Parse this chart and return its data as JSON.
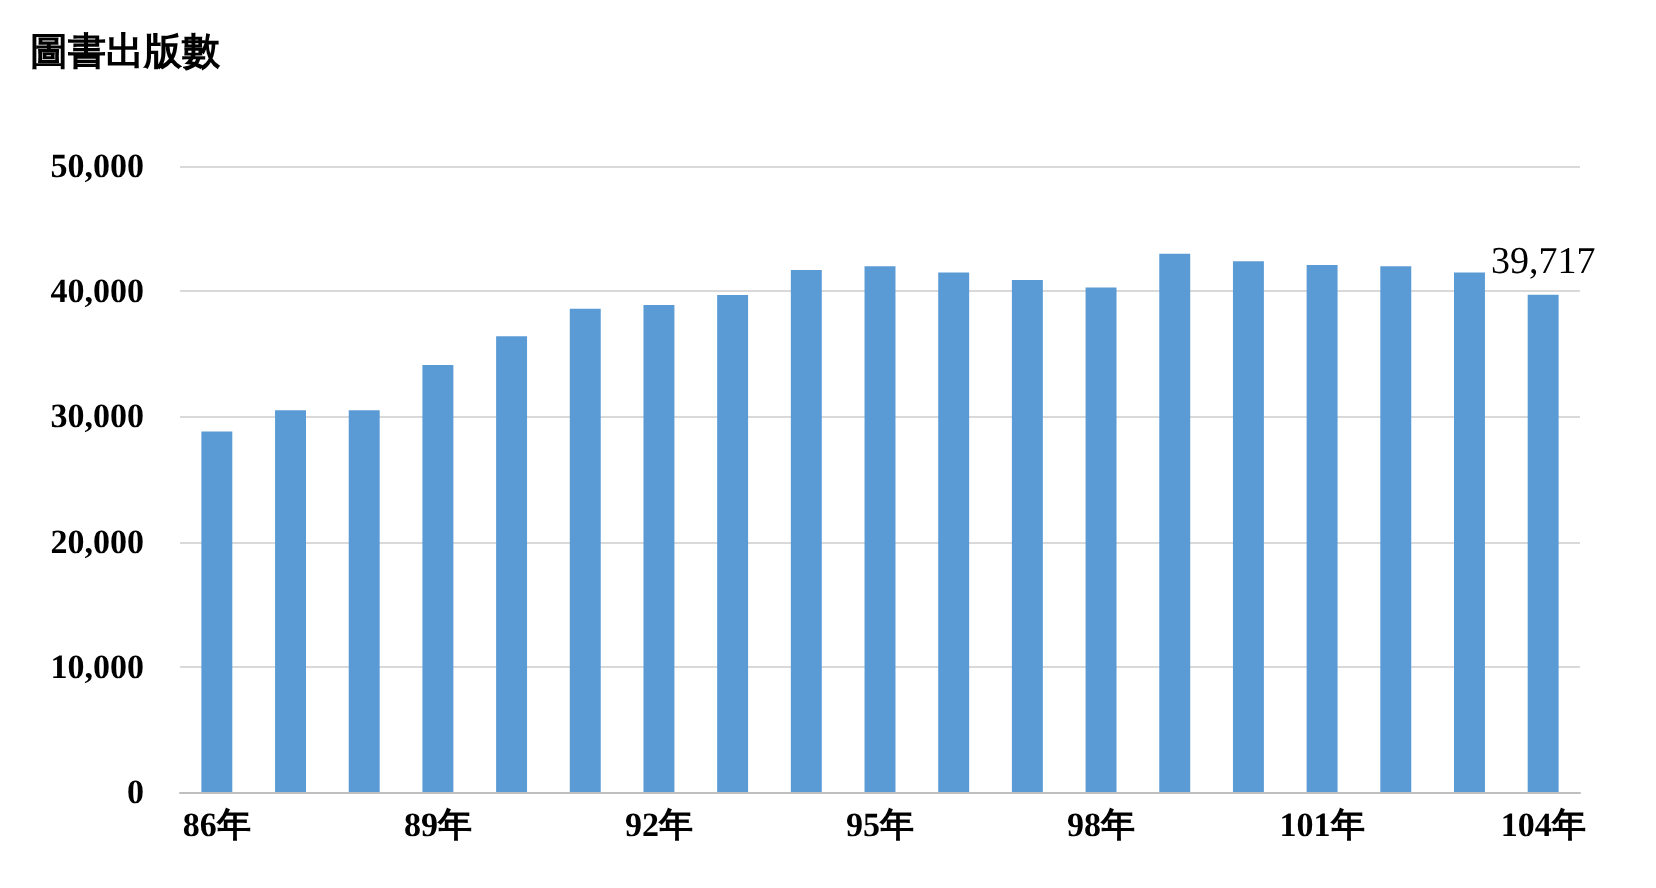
{
  "chart_data": {
    "type": "bar",
    "title": "圖書出版數",
    "categories": [
      "86年",
      null,
      null,
      "89年",
      null,
      null,
      "92年",
      null,
      null,
      "95年",
      null,
      null,
      "98年",
      null,
      null,
      "101年",
      null,
      null,
      "104年"
    ],
    "values": [
      28800,
      30500,
      30500,
      34100,
      36400,
      38600,
      38900,
      39700,
      41700,
      42000,
      41500,
      40900,
      40300,
      43000,
      42400,
      42100,
      42000,
      41500,
      39717
    ],
    "value_labels": [
      null,
      null,
      null,
      null,
      null,
      null,
      null,
      null,
      null,
      null,
      null,
      null,
      null,
      null,
      null,
      null,
      null,
      null,
      "39,717"
    ],
    "color": "#5b9bd5",
    "ylim": [
      0,
      50000
    ],
    "yticks": [
      0,
      {
        "value": 10000,
        "label": "10,000"
      },
      {
        "value": 20000,
        "label": "20,000"
      },
      {
        "value": 30000,
        "label": "30,000"
      },
      {
        "value": 40000,
        "label": "40,000"
      },
      {
        "value": 50000,
        "label": "50,000"
      }
    ],
    "grid": "y"
  }
}
